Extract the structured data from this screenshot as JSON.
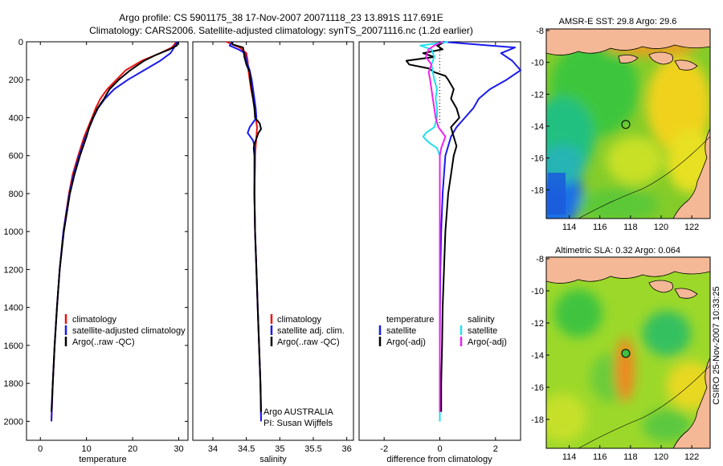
{
  "header": {
    "line1": "Argo profile: CS 5901175_38 17-Nov-2007 20071118_23 13.891S 117.691E",
    "line2": "Climatology: CARS2006. Satellite-adjusted climatology: synTS_20071116.nc (1.2d earlier)"
  },
  "credit": "CSIRO 25-Nov-2007 10:33:25",
  "colors": {
    "red": "#ee1111",
    "blue": "#1a1aee",
    "black": "#000000",
    "cyan": "#22e0ee",
    "magenta": "#ee22ee"
  },
  "chart_data": [
    {
      "type": "line",
      "panel": "temperature",
      "xlabel": "temperature",
      "ylabel": "",
      "xlim": [
        -3,
        32
      ],
      "ylim": [
        2100,
        0
      ],
      "xticks": [
        0,
        10,
        20,
        30
      ],
      "yticks": [
        0,
        200,
        400,
        600,
        800,
        1000,
        1200,
        1400,
        1600,
        1800,
        2000
      ],
      "legend": [
        "climatology",
        "satellite-adjusted climatology",
        "Argo(..raw -QC)"
      ],
      "series": [
        {
          "name": "climatology",
          "color": "red",
          "depth": [
            0,
            30,
            60,
            100,
            150,
            200,
            250,
            300,
            350,
            400,
            500,
            600,
            700,
            800,
            1000,
            1200,
            1400,
            1600,
            1800,
            2000
          ],
          "values": [
            29.5,
            28.5,
            26,
            22,
            18.5,
            16.5,
            14.5,
            13,
            12,
            11.2,
            9.5,
            8.2,
            7,
            6.2,
            5,
            4.2,
            3.6,
            3.1,
            2.7,
            2.4
          ]
        },
        {
          "name": "satellite-adjusted climatology",
          "color": "blue",
          "depth": [
            0,
            30,
            60,
            100,
            150,
            200,
            250,
            300,
            350,
            400,
            500,
            600,
            700,
            800,
            1000,
            1200,
            1400,
            1600,
            1800,
            2000
          ],
          "values": [
            29.6,
            29,
            28.2,
            26,
            22.5,
            19,
            16,
            14,
            12.5,
            11.5,
            9.8,
            8.4,
            7.2,
            6.3,
            5,
            4.2,
            3.6,
            3.1,
            2.7,
            2.4
          ]
        },
        {
          "name": "Argo(..raw -QC)",
          "color": "black",
          "depth": [
            0,
            20,
            40,
            70,
            100,
            150,
            200,
            250,
            300,
            350,
            400,
            450,
            500,
            600,
            700,
            800,
            1000,
            1200,
            1400,
            1600,
            1800,
            1950
          ],
          "values": [
            29.8,
            29.6,
            28,
            25,
            22.5,
            19.5,
            17,
            15,
            13.8,
            12.4,
            11.4,
            10.6,
            10,
            8.6,
            7.4,
            6.4,
            5.1,
            4.2,
            3.6,
            3.1,
            2.7,
            2.4
          ]
        }
      ]
    },
    {
      "type": "line",
      "panel": "salinity",
      "xlabel": "salinity",
      "ylabel": "",
      "xlim": [
        33.7,
        36.1
      ],
      "ylim": [
        2100,
        0
      ],
      "xticks": [
        34,
        34.5,
        35,
        35.5,
        36
      ],
      "xticklabels": [
        "34",
        "34.5",
        "35",
        "35.5",
        "36"
      ],
      "legend": [
        "climatology",
        "satellite adj. clim.",
        "Argo(..raw -QC)"
      ],
      "annotations": [
        "Argo AUSTRALIA",
        "PI: Susan Wijffels"
      ],
      "series": [
        {
          "name": "climatology",
          "color": "red",
          "depth": [
            0,
            30,
            60,
            100,
            150,
            200,
            250,
            300,
            350,
            400,
            450,
            500,
            550,
            600,
            800,
            1000,
            1200,
            1400,
            1600,
            1800,
            2000
          ],
          "values": [
            34.2,
            34.4,
            34.5,
            34.52,
            34.53,
            34.55,
            34.57,
            34.6,
            34.62,
            34.64,
            34.66,
            34.65,
            34.64,
            34.63,
            34.62,
            34.63,
            34.65,
            34.67,
            34.69,
            34.71,
            34.72
          ]
        },
        {
          "name": "satellite adj. clim.",
          "color": "blue",
          "depth": [
            0,
            20,
            40,
            60,
            100,
            150,
            200,
            250,
            300,
            350,
            400,
            450,
            480,
            520,
            550,
            600,
            800,
            1000,
            1200,
            1400,
            1600,
            1800,
            2000
          ],
          "values": [
            34.3,
            34.25,
            34.38,
            34.48,
            34.5,
            34.55,
            34.58,
            34.6,
            34.62,
            34.64,
            34.65,
            34.55,
            34.52,
            34.6,
            34.62,
            34.63,
            34.62,
            34.63,
            34.65,
            34.67,
            34.69,
            34.71,
            34.72
          ]
        },
        {
          "name": "Argo(..raw -QC)",
          "color": "black",
          "depth": [
            0,
            15,
            30,
            50,
            80,
            120,
            160,
            200,
            250,
            300,
            350,
            400,
            430,
            460,
            480,
            500,
            520,
            540,
            560,
            600,
            800,
            1000,
            1200,
            1400,
            1600,
            1800,
            1950
          ],
          "values": [
            34.28,
            34.3,
            34.45,
            34.46,
            34.47,
            34.5,
            34.55,
            34.56,
            34.58,
            34.6,
            34.62,
            34.63,
            34.7,
            34.72,
            34.68,
            34.66,
            34.64,
            34.62,
            34.61,
            34.62,
            34.62,
            34.63,
            34.65,
            34.67,
            34.69,
            34.71,
            34.72
          ]
        }
      ]
    },
    {
      "type": "line",
      "panel": "difference",
      "xlabel": "difference from climatology",
      "ylabel": "",
      "xlim": [
        -2.9,
        2.9
      ],
      "ylim": [
        2100,
        0
      ],
      "xticks": [
        -2,
        0,
        2
      ],
      "legend": [
        "temperature",
        "satellite",
        "Argo(-adj)",
        "salinity",
        "satellite",
        "Argo(-adj)"
      ],
      "series": [
        {
          "name": "temperature satellite",
          "color": "blue",
          "depth": [
            0,
            30,
            60,
            100,
            150,
            200,
            250,
            300,
            350,
            400,
            450,
            500,
            550,
            600,
            800,
            1000,
            1200,
            1400,
            1600,
            1800,
            2000
          ],
          "values": [
            0.1,
            2.7,
            2.2,
            2.6,
            2.9,
            2.4,
            1.8,
            1.4,
            1.2,
            0.9,
            0.6,
            0.4,
            0.3,
            0.2,
            0.1,
            0.05,
            0.02,
            0.01,
            0,
            0,
            0
          ]
        },
        {
          "name": "temperature Argo(-adj)",
          "color": "black",
          "depth": [
            0,
            20,
            40,
            60,
            80,
            100,
            120,
            140,
            160,
            180,
            200,
            250,
            300,
            350,
            400,
            450,
            500,
            550,
            600,
            700,
            800,
            1000,
            1200,
            1400,
            1600,
            1800,
            1950
          ],
          "values": [
            0.2,
            -0.1,
            0.1,
            -0.6,
            -0.2,
            -1.2,
            -1.1,
            -0.4,
            -0.2,
            0.2,
            0.3,
            0.5,
            0.4,
            0.6,
            0.7,
            0.4,
            0.5,
            0.6,
            0.5,
            0.4,
            0.3,
            0.2,
            0.15,
            0.1,
            0.08,
            0.05,
            0.05
          ]
        },
        {
          "name": "salinity satellite",
          "color": "cyan",
          "depth": [
            0,
            20,
            40,
            80,
            120,
            160,
            200,
            250,
            300,
            350,
            400,
            450,
            480,
            500,
            530,
            560,
            600,
            800,
            1000,
            1200,
            1400,
            1600,
            1800,
            2000
          ],
          "values": [
            0.3,
            -0.7,
            -0.3,
            -0.2,
            -0.3,
            -0.25,
            -0.2,
            -0.1,
            -0.15,
            -0.1,
            -0.1,
            -0.2,
            -0.5,
            -0.6,
            -0.4,
            -0.1,
            0,
            0,
            0,
            0,
            0,
            0,
            0,
            0
          ]
        },
        {
          "name": "salinity Argo(-adj)",
          "color": "magenta",
          "depth": [
            0,
            20,
            40,
            80,
            120,
            160,
            200,
            250,
            300,
            350,
            400,
            450,
            480,
            500,
            520,
            540,
            560,
            600,
            800,
            1000,
            1200,
            1400,
            1600,
            1800,
            1950
          ],
          "values": [
            0.1,
            -0.2,
            -0.4,
            -0.5,
            -0.3,
            -0.4,
            -0.35,
            -0.3,
            -0.25,
            -0.2,
            -0.15,
            -0.05,
            0.1,
            0.2,
            0.15,
            0.1,
            0.05,
            0,
            0,
            0,
            0,
            0,
            0,
            0,
            0
          ]
        }
      ]
    },
    {
      "type": "heatmap",
      "panel": "map-sst",
      "title": "AMSR-E SST: 29.8 Argo: 29.6",
      "xlim": [
        112.5,
        123.2
      ],
      "ylim": [
        -19.8,
        -7.9
      ],
      "xticks": [
        114,
        116,
        118,
        120,
        122
      ],
      "yticks": [
        -8,
        -10,
        -12,
        -14,
        -16,
        -18
      ],
      "marker": {
        "lon": 117.691,
        "lat": -13.891
      }
    },
    {
      "type": "heatmap",
      "panel": "map-sla",
      "title": "Altimetric SLA: 0.32 Argo: 0.064",
      "xlim": [
        112.5,
        123.2
      ],
      "ylim": [
        -19.8,
        -7.9
      ],
      "xticks": [
        114,
        116,
        118,
        120,
        122
      ],
      "yticks": [
        -8,
        -10,
        -12,
        -14,
        -16,
        -18
      ],
      "marker": {
        "lon": 117.691,
        "lat": -13.891
      }
    }
  ]
}
